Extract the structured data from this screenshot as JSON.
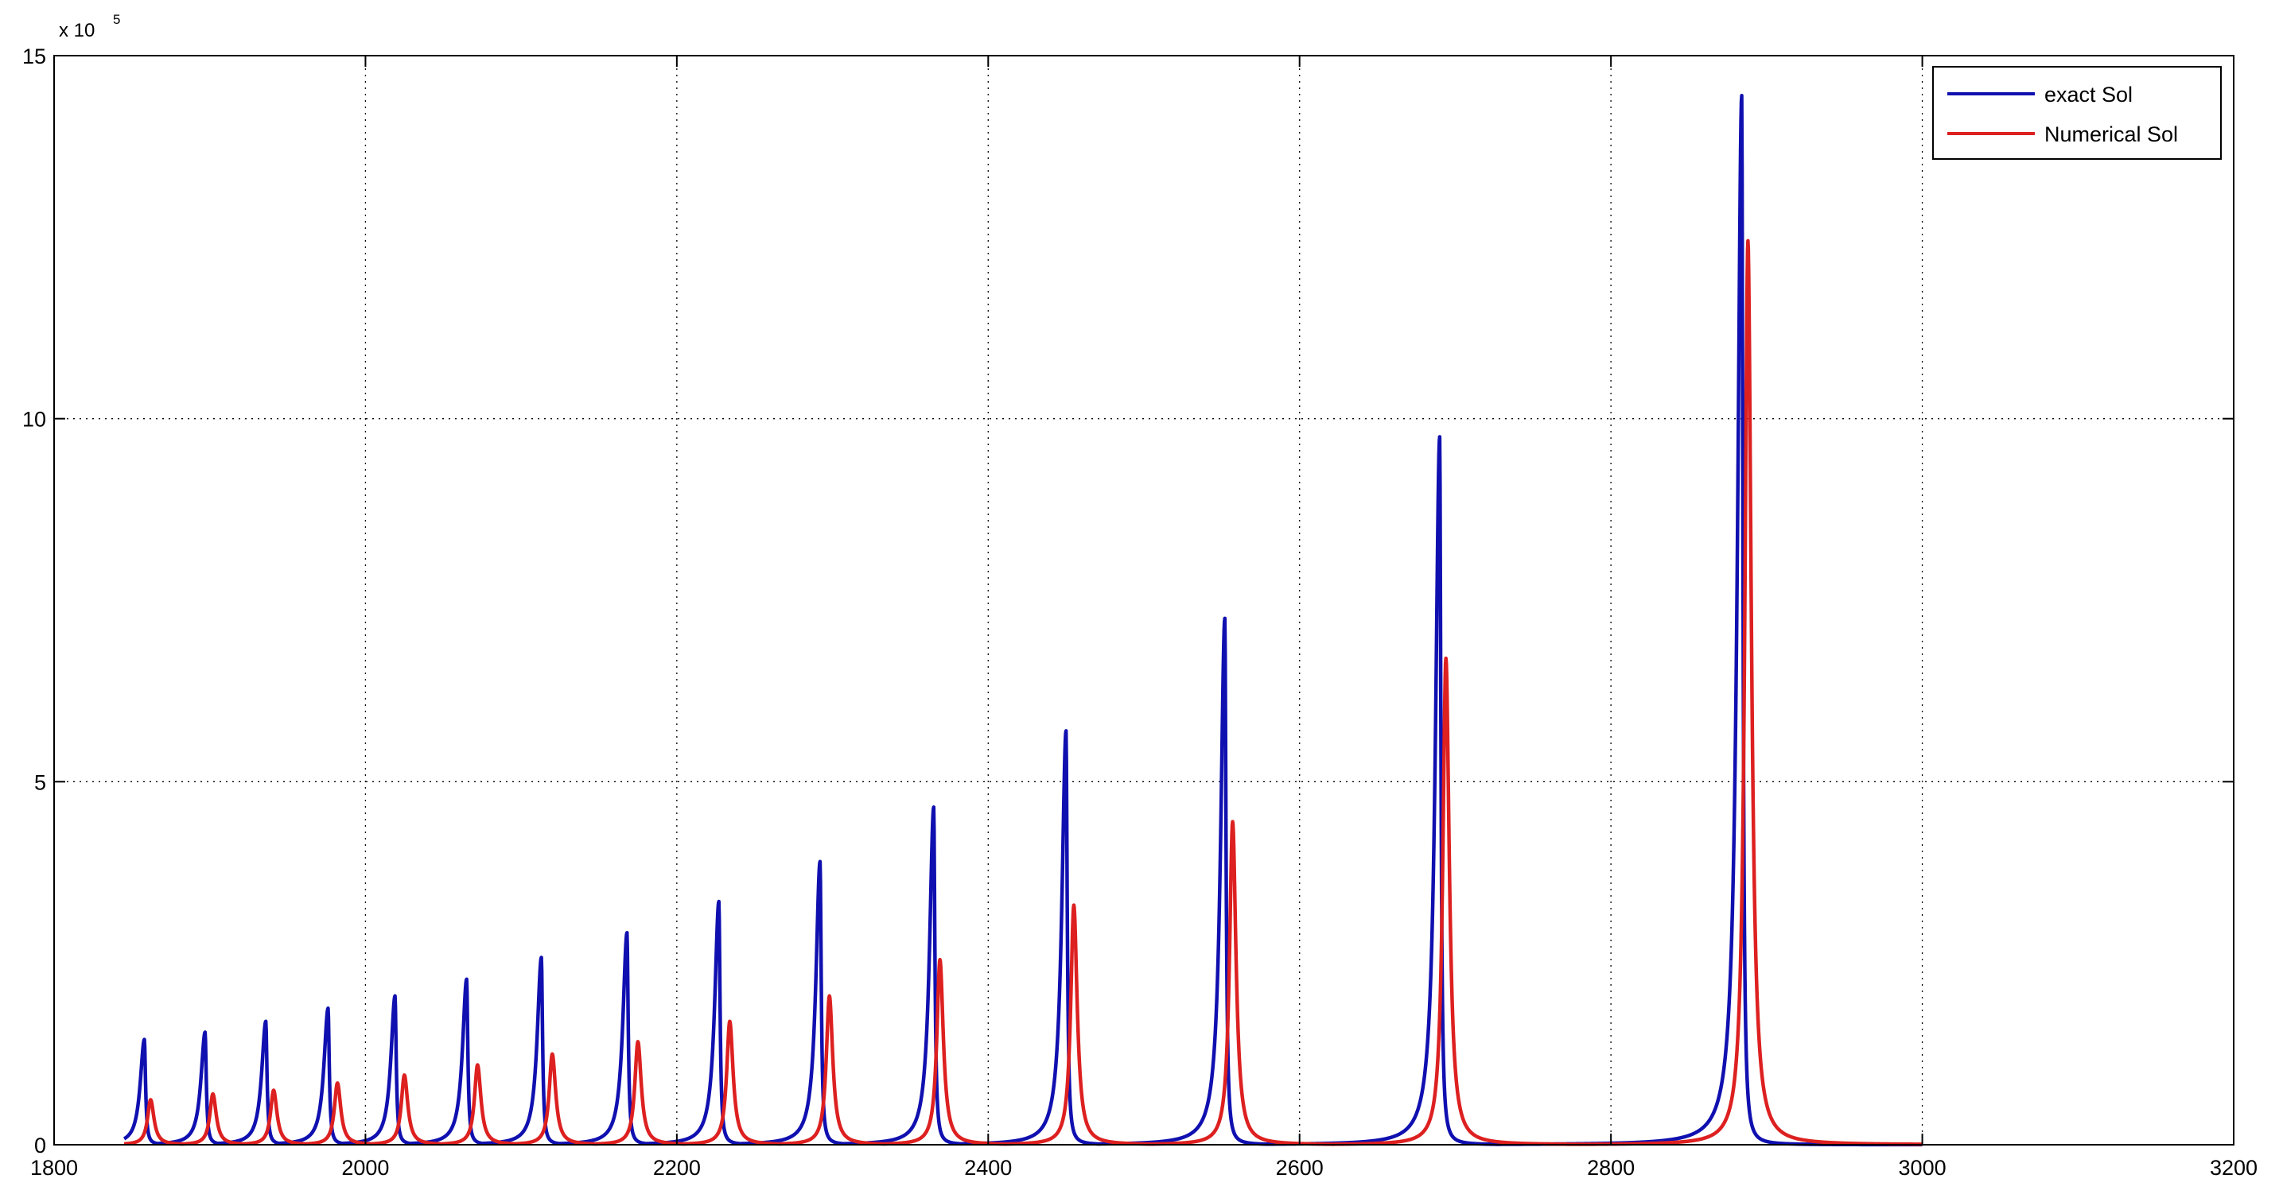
{
  "chart_data": {
    "type": "line",
    "title": "",
    "xlabel": "",
    "ylabel": "",
    "xlim": [
      1800,
      3200
    ],
    "ylim": [
      0,
      1500000
    ],
    "x_ticks": [
      "1800",
      "2000",
      "2200",
      "2400",
      "2600",
      "2800",
      "3000",
      "3200"
    ],
    "y_ticks": [
      "0",
      "5",
      "10",
      "15"
    ],
    "y_multiplier": {
      "base": "x 10",
      "exponent": "5"
    },
    "grid": true,
    "grid_style": "dotted",
    "legend_position": "top-right",
    "x_range_of_data": [
      1845,
      3000
    ],
    "series": [
      {
        "name": "exact Sol",
        "color": "#1010b0",
        "peaks": [
          {
            "x": 1858,
            "y": 145000
          },
          {
            "x": 1897,
            "y": 155000
          },
          {
            "x": 1936,
            "y": 170000
          },
          {
            "x": 1976,
            "y": 188000
          },
          {
            "x": 2019,
            "y": 205000
          },
          {
            "x": 2065,
            "y": 228000
          },
          {
            "x": 2113,
            "y": 258000
          },
          {
            "x": 2168,
            "y": 292000
          },
          {
            "x": 2227,
            "y": 335000
          },
          {
            "x": 2292,
            "y": 390000
          },
          {
            "x": 2365,
            "y": 465000
          },
          {
            "x": 2450,
            "y": 570000
          },
          {
            "x": 2552,
            "y": 725000
          },
          {
            "x": 2690,
            "y": 975000
          },
          {
            "x": 2884,
            "y": 1445000
          }
        ]
      },
      {
        "name": "Numerical Sol",
        "color": "#dd2020",
        "peaks": [
          {
            "x": 1862,
            "y": 62000
          },
          {
            "x": 1902,
            "y": 70000
          },
          {
            "x": 1941,
            "y": 75000
          },
          {
            "x": 1982,
            "y": 85000
          },
          {
            "x": 2025,
            "y": 96000
          },
          {
            "x": 2072,
            "y": 110000
          },
          {
            "x": 2120,
            "y": 125000
          },
          {
            "x": 2175,
            "y": 142000
          },
          {
            "x": 2234,
            "y": 170000
          },
          {
            "x": 2298,
            "y": 205000
          },
          {
            "x": 2369,
            "y": 255000
          },
          {
            "x": 2455,
            "y": 330000
          },
          {
            "x": 2557,
            "y": 445000
          },
          {
            "x": 2694,
            "y": 670000
          },
          {
            "x": 2888,
            "y": 1245000
          }
        ]
      }
    ]
  },
  "legend": {
    "items": [
      "exact Sol",
      "Numerical Sol"
    ]
  }
}
